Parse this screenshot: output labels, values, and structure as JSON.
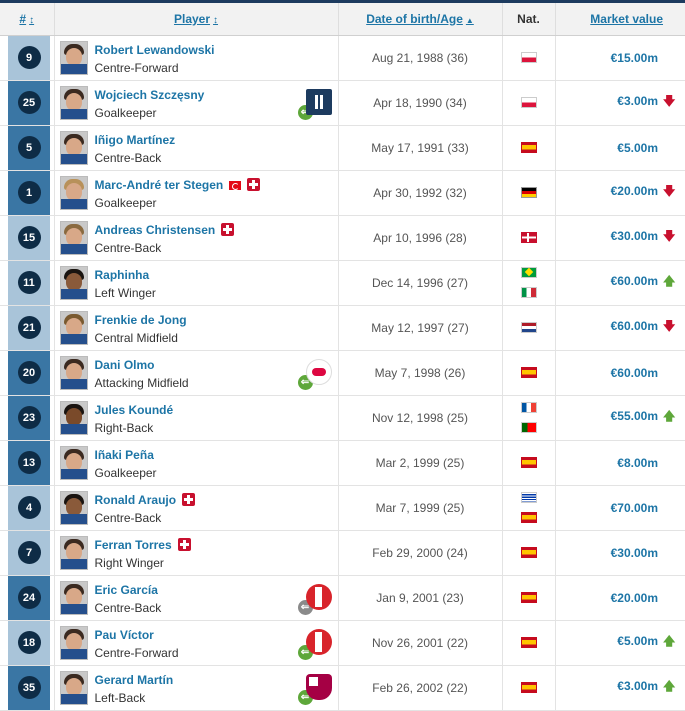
{
  "header": {
    "number": "#",
    "player": "Player",
    "dob": "Date of birth/Age",
    "nat": "Nat.",
    "market_value": "Market value"
  },
  "icons": {
    "sort_both": "↕",
    "sort_up": "▲",
    "trend_down": "🡇",
    "trend_up": "🡅",
    "loan_in": "⇐"
  },
  "players": [
    {
      "number": "9",
      "name": "Robert Lewandowski",
      "position": "Centre-Forward",
      "dob": "Aug 21, 1988 (36)",
      "market_value": "€15.00m"
    },
    {
      "number": "25",
      "name": "Wojciech Szczęsny",
      "position": "Goalkeeper",
      "dob": "Apr 18, 1990 (34)",
      "market_value": "€3.00m"
    },
    {
      "number": "5",
      "name": "Iñigo Martínez",
      "position": "Centre-Back",
      "dob": "May 17, 1991 (33)",
      "market_value": "€5.00m"
    },
    {
      "number": "1",
      "name": "Marc-André ter Stegen",
      "position": "Goalkeeper",
      "dob": "Apr 30, 1992 (32)",
      "market_value": "€20.00m"
    },
    {
      "number": "15",
      "name": "Andreas Christensen",
      "position": "Centre-Back",
      "dob": "Apr 10, 1996 (28)",
      "market_value": "€30.00m"
    },
    {
      "number": "11",
      "name": "Raphinha",
      "position": "Left Winger",
      "dob": "Dec 14, 1996 (27)",
      "market_value": "€60.00m"
    },
    {
      "number": "21",
      "name": "Frenkie de Jong",
      "position": "Central Midfield",
      "dob": "May 12, 1997 (27)",
      "market_value": "€60.00m"
    },
    {
      "number": "20",
      "name": "Dani Olmo",
      "position": "Attacking Midfield",
      "dob": "May 7, 1998 (26)",
      "market_value": "€60.00m"
    },
    {
      "number": "23",
      "name": "Jules Koundé",
      "position": "Right-Back",
      "dob": "Nov 12, 1998 (25)",
      "market_value": "€55.00m"
    },
    {
      "number": "13",
      "name": "Iñaki Peña",
      "position": "Goalkeeper",
      "dob": "Mar 2, 1999 (25)",
      "market_value": "€8.00m"
    },
    {
      "number": "4",
      "name": "Ronald Araujo",
      "position": "Centre-Back",
      "dob": "Mar 7, 1999 (25)",
      "market_value": "€70.00m"
    },
    {
      "number": "7",
      "name": "Ferran Torres",
      "position": "Right Winger",
      "dob": "Feb 29, 2000 (24)",
      "market_value": "€30.00m"
    },
    {
      "number": "24",
      "name": "Eric García",
      "position": "Centre-Back",
      "dob": "Jan 9, 2001 (23)",
      "market_value": "€20.00m"
    },
    {
      "number": "18",
      "name": "Pau Víctor",
      "position": "Centre-Forward",
      "dob": "Nov 26, 2001 (22)",
      "market_value": "€5.00m"
    },
    {
      "number": "35",
      "name": "Gerard Martín",
      "position": "Left-Back",
      "dob": "Feb 26, 2002 (22)",
      "market_value": "€3.00m"
    }
  ]
}
